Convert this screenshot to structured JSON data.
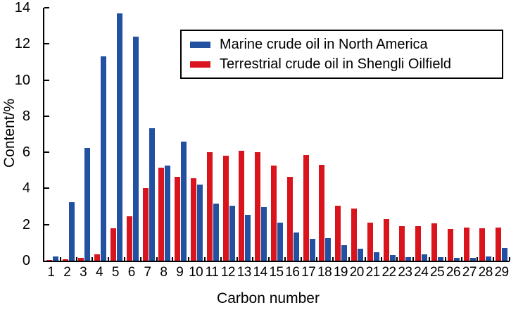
{
  "chart_data": {
    "type": "bar",
    "title": "",
    "xlabel": "Carbon number",
    "ylabel": "Content/%",
    "ylim": [
      0,
      14
    ],
    "yticks": [
      0,
      2,
      4,
      6,
      8,
      10,
      12,
      14
    ],
    "grid": false,
    "legend_position": "upper right",
    "categories": [
      1,
      2,
      3,
      4,
      5,
      6,
      7,
      8,
      9,
      10,
      11,
      12,
      13,
      14,
      15,
      16,
      17,
      18,
      19,
      20,
      21,
      22,
      23,
      24,
      25,
      26,
      27,
      28,
      29
    ],
    "bar_order_indices": [
      1,
      0
    ],
    "series": [
      {
        "name": "Marine crude oil in North America",
        "key": "marine",
        "color": "#2151a0",
        "values": [
          0.25,
          3.25,
          6.25,
          11.3,
          13.7,
          12.4,
          7.35,
          5.25,
          6.6,
          4.2,
          3.15,
          3.05,
          2.55,
          2.95,
          2.1,
          1.55,
          1.2,
          1.25,
          0.85,
          0.65,
          0.45,
          0.3,
          0.2,
          0.35,
          0.2,
          0.15,
          0.15,
          0.25,
          0.7
        ]
      },
      {
        "name": "Terrestrial crude oil in Shengli Oilfield",
        "key": "terrestrial",
        "color": "#d9141c",
        "values": [
          0.05,
          0.08,
          0.15,
          0.35,
          1.8,
          2.45,
          4.0,
          5.15,
          4.65,
          4.55,
          6.0,
          5.8,
          6.1,
          6.0,
          5.25,
          4.65,
          5.85,
          5.3,
          3.05,
          2.9,
          2.1,
          2.3,
          1.9,
          1.9,
          2.05,
          1.75,
          1.85,
          1.8,
          1.85
        ]
      }
    ]
  }
}
